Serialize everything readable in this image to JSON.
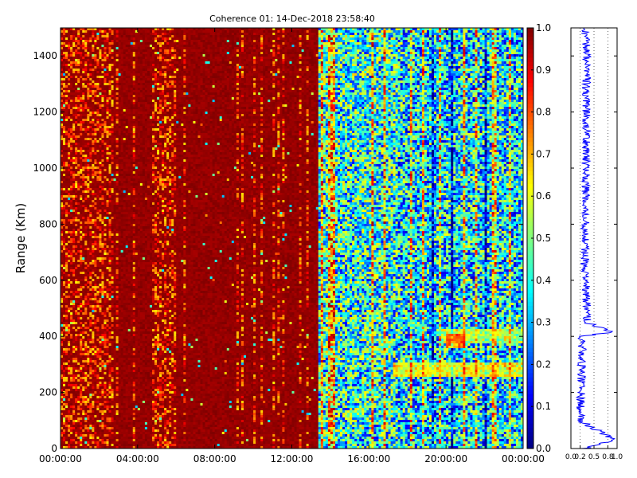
{
  "chart_data": [
    {
      "type": "heatmap",
      "title": "Coherence 01: 14-Dec-2018 23:58:40",
      "ylabel": "Range (Km)",
      "xlabel": "",
      "x_tick_labels": [
        "00:00:00",
        "04:00:00",
        "08:00:00",
        "12:00:00",
        "16:00:00",
        "20:00:00",
        "00:00:00"
      ],
      "x_ticks_hours": [
        0,
        4,
        8,
        12,
        16,
        20,
        24
      ],
      "xlim_hours": [
        0,
        24
      ],
      "y_ticks": [
        0,
        200,
        400,
        600,
        800,
        1000,
        1200,
        1400
      ],
      "y_tick_labels": [
        "0",
        "200",
        "400",
        "600",
        "800",
        "1000",
        "1200",
        "1400"
      ],
      "ylim": [
        0,
        1500
      ],
      "colormap": "jet",
      "clim": [
        0,
        1
      ],
      "colorbar_ticks": [
        0.0,
        0.1,
        0.2,
        0.3,
        0.4,
        0.5,
        0.6,
        0.7,
        0.8,
        0.9,
        1.0
      ],
      "colorbar_tick_labels": [
        "0.0",
        "0.1",
        "0.2",
        "0.3",
        "0.4",
        "0.5",
        "0.6",
        "0.7",
        "0.8",
        "0.9",
        "1.0"
      ],
      "regions": [
        {
          "hours": [
            0,
            13.4
          ],
          "typical_value": 0.97
        },
        {
          "hours": [
            13.4,
            17.5
          ],
          "typical_value": 0.4
        },
        {
          "hours": [
            17.5,
            24
          ],
          "typical_value": 0.35
        }
      ],
      "features": [
        {
          "range_km": 400,
          "hours": [
            19.8,
            24
          ],
          "value": 0.7
        },
        {
          "range_km": 380,
          "hours": [
            20,
            21
          ],
          "value": 0.95
        },
        {
          "range_km": 280,
          "hours": [
            17.2,
            24
          ],
          "value": 0.8
        }
      ]
    },
    {
      "type": "line",
      "x_ticks": [
        0.0,
        0.2,
        0.5,
        0.8,
        1.0
      ],
      "x_tick_labels": [
        "0.0",
        "0.2",
        "0.5",
        "0.8",
        "1.0"
      ],
      "xlim": [
        0,
        1
      ],
      "ylim": [
        0,
        1500
      ],
      "grid": true,
      "color": "#0000ff",
      "profile": [
        {
          "range_km": 0,
          "value": 0.3
        },
        {
          "range_km": 30,
          "value": 0.95
        },
        {
          "range_km": 100,
          "value": 0.2
        },
        {
          "range_km": 400,
          "value": 0.25
        },
        {
          "range_km": 415,
          "value": 0.85
        },
        {
          "range_km": 450,
          "value": 0.35
        },
        {
          "range_km": 700,
          "value": 0.3
        },
        {
          "range_km": 1400,
          "value": 0.35
        },
        {
          "range_km": 1500,
          "value": 0.3
        }
      ]
    }
  ]
}
